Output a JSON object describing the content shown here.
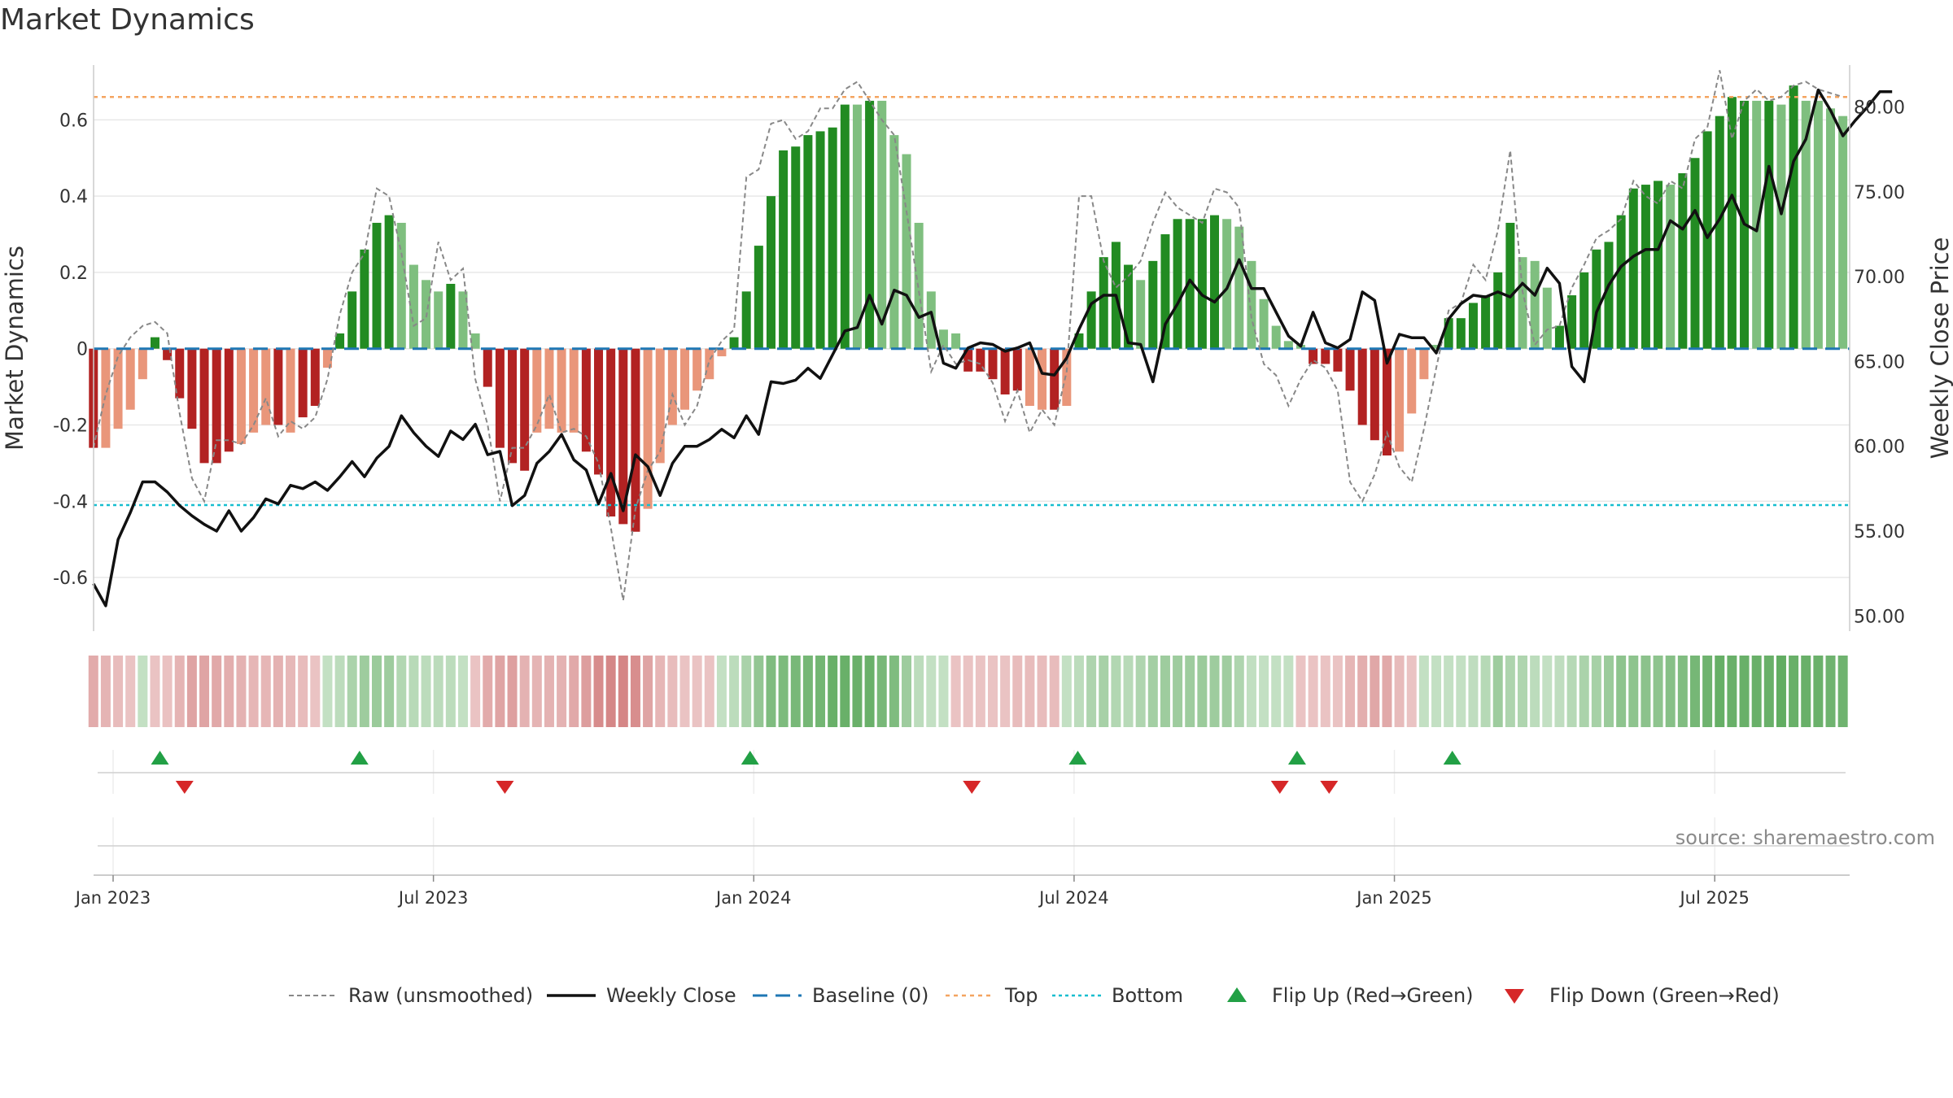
{
  "title": "Market Dynamics",
  "source_text": "source: sharemaestro.com",
  "colors": {
    "strong_green": "#228b22",
    "light_green": "#7fbf7f",
    "strong_red": "#b22222",
    "light_red": "#e9967a",
    "raw_line": "#888888",
    "close_line": "#111111",
    "baseline": "#1f77b4",
    "top": "#f4a460",
    "bottom": "#17becf",
    "flip_up": "#22a045",
    "flip_down": "#d62728",
    "grid": "#e8e8e8"
  },
  "chart_data": {
    "type": "bar",
    "ylabel": "Market Dynamics",
    "y2label": "Weekly Close Price",
    "ylim": [
      -0.75,
      0.74
    ],
    "y2lim": [
      48.6,
      81.8
    ],
    "yticks": [
      "-0.6",
      "-0.4",
      "-0.2",
      "0",
      "0.2",
      "0.4",
      "0.6"
    ],
    "yticks_values": [
      -0.6,
      -0.4,
      -0.2,
      0,
      0.2,
      0.4,
      0.6
    ],
    "y2ticks": [
      "50.00",
      "55.00",
      "60.00",
      "65.00",
      "70.00",
      "75.00",
      "80.00"
    ],
    "y2ticks_values": [
      50,
      55,
      60,
      65,
      70,
      75,
      80
    ],
    "xticks": [
      "Jan 2023",
      "Jul 2023",
      "Jan 2024",
      "Jul 2024",
      "Jan 2025",
      "Jul 2025"
    ],
    "xticks_weeks": [
      0,
      26,
      52,
      78,
      104,
      130
    ],
    "x_start": "2023-01-01",
    "x_end": "2025-10-08",
    "week_start_index": -1.6,
    "grid": true,
    "top_level": 0.66,
    "bottom_level": -0.41,
    "baseline_level": 0,
    "bars": [
      -0.26,
      -0.26,
      -0.21,
      -0.16,
      -0.08,
      0.03,
      -0.03,
      -0.13,
      -0.21,
      -0.3,
      -0.3,
      -0.27,
      -0.25,
      -0.22,
      -0.2,
      -0.2,
      -0.22,
      -0.18,
      -0.15,
      -0.05,
      0.04,
      0.15,
      0.26,
      0.33,
      0.35,
      0.33,
      0.22,
      0.18,
      0.15,
      0.17,
      0.15,
      0.04,
      -0.1,
      -0.26,
      -0.3,
      -0.32,
      -0.22,
      -0.21,
      -0.22,
      -0.22,
      -0.27,
      -0.33,
      -0.44,
      -0.46,
      -0.48,
      -0.42,
      -0.3,
      -0.2,
      -0.16,
      -0.11,
      -0.08,
      -0.02,
      0.03,
      0.15,
      0.27,
      0.4,
      0.52,
      0.53,
      0.56,
      0.57,
      0.58,
      0.64,
      0.64,
      0.65,
      0.65,
      0.56,
      0.51,
      0.33,
      0.15,
      0.05,
      0.04,
      -0.06,
      -0.06,
      -0.08,
      -0.12,
      -0.11,
      -0.15,
      -0.16,
      -0.16,
      -0.15,
      0.04,
      0.15,
      0.24,
      0.28,
      0.22,
      0.18,
      0.23,
      0.3,
      0.34,
      0.34,
      0.34,
      0.35,
      0.34,
      0.32,
      0.23,
      0.13,
      0.06,
      0.02,
      0.01,
      -0.04,
      -0.04,
      -0.06,
      -0.11,
      -0.2,
      -0.24,
      -0.28,
      -0.27,
      -0.17,
      -0.08,
      0.01,
      0.08,
      0.08,
      0.12,
      0.14,
      0.2,
      0.33,
      0.24,
      0.23,
      0.16,
      0.06,
      0.14,
      0.2,
      0.26,
      0.28,
      0.35,
      0.42,
      0.43,
      0.44,
      0.43,
      0.46,
      0.5,
      0.57,
      0.61,
      0.66,
      0.65,
      0.65,
      0.65,
      0.64,
      0.69,
      0.65,
      0.65,
      0.63,
      0.61
    ],
    "bar_shades": [
      "strong",
      "light",
      "light",
      "light",
      "light",
      "strong",
      "strong",
      "strong",
      "strong",
      "strong",
      "strong",
      "strong",
      "light",
      "light",
      "light",
      "strong",
      "light",
      "strong",
      "strong",
      "light",
      "strong",
      "strong",
      "strong",
      "strong",
      "strong",
      "light",
      "light",
      "light",
      "light",
      "strong",
      "light",
      "light",
      "strong",
      "strong",
      "strong",
      "strong",
      "light",
      "light",
      "light",
      "light",
      "strong",
      "strong",
      "strong",
      "strong",
      "strong",
      "light",
      "light",
      "light",
      "light",
      "light",
      "light",
      "light",
      "strong",
      "strong",
      "strong",
      "strong",
      "strong",
      "strong",
      "strong",
      "strong",
      "strong",
      "strong",
      "light",
      "strong",
      "light",
      "light",
      "light",
      "light",
      "light",
      "light",
      "light",
      "strong",
      "strong",
      "strong",
      "strong",
      "strong",
      "light",
      "light",
      "strong",
      "light",
      "strong",
      "strong",
      "strong",
      "strong",
      "strong",
      "light",
      "strong",
      "strong",
      "strong",
      "strong",
      "strong",
      "strong",
      "light",
      "light",
      "light",
      "light",
      "light",
      "light",
      "light",
      "strong",
      "strong",
      "strong",
      "strong",
      "strong",
      "strong",
      "strong",
      "light",
      "light",
      "light",
      "light",
      "strong",
      "strong",
      "strong",
      "strong",
      "strong",
      "strong",
      "light",
      "light",
      "light",
      "strong",
      "strong",
      "strong",
      "strong",
      "strong",
      "strong",
      "strong",
      "strong",
      "strong",
      "light",
      "strong",
      "strong",
      "strong",
      "strong",
      "strong",
      "strong",
      "light",
      "strong",
      "light",
      "strong",
      "light",
      "light",
      "light",
      "light"
    ],
    "raw": [
      -0.26,
      -0.12,
      -0.02,
      0.03,
      0.06,
      0.07,
      0.04,
      -0.17,
      -0.34,
      -0.4,
      -0.24,
      -0.24,
      -0.25,
      -0.2,
      -0.13,
      -0.23,
      -0.19,
      -0.21,
      -0.18,
      -0.08,
      0.09,
      0.2,
      0.25,
      0.42,
      0.4,
      0.25,
      0.06,
      0.08,
      0.28,
      0.18,
      0.21,
      -0.08,
      -0.2,
      -0.4,
      -0.26,
      -0.26,
      -0.2,
      -0.12,
      -0.22,
      -0.21,
      -0.23,
      -0.3,
      -0.47,
      -0.66,
      -0.42,
      -0.32,
      -0.27,
      -0.12,
      -0.2,
      -0.15,
      -0.03,
      0.02,
      0.05,
      0.45,
      0.47,
      0.59,
      0.6,
      0.55,
      0.57,
      0.63,
      0.63,
      0.68,
      0.7,
      0.65,
      0.6,
      0.56,
      0.36,
      0.15,
      -0.06,
      0.01,
      -0.04,
      -0.03,
      -0.04,
      -0.09,
      -0.19,
      -0.11,
      -0.22,
      -0.16,
      -0.2,
      -0.06,
      0.4,
      0.4,
      0.23,
      0.16,
      0.19,
      0.23,
      0.33,
      0.41,
      0.37,
      0.35,
      0.33,
      0.42,
      0.41,
      0.37,
      0.08,
      -0.04,
      -0.07,
      -0.15,
      -0.08,
      -0.03,
      -0.05,
      -0.11,
      -0.35,
      -0.4,
      -0.33,
      -0.22,
      -0.31,
      -0.35,
      -0.21,
      -0.05,
      0.1,
      0.12,
      0.22,
      0.18,
      0.31,
      0.52,
      0.15,
      0.01,
      0.05,
      0.06,
      0.16,
      0.22,
      0.29,
      0.31,
      0.34,
      0.44,
      0.4,
      0.38,
      0.44,
      0.42,
      0.55,
      0.58,
      0.73,
      0.55,
      0.65,
      0.68,
      0.65,
      0.66,
      0.69,
      0.7,
      0.68,
      0.67,
      0.66
    ],
    "close": [
      51.9,
      50.6,
      54.5,
      56.1,
      57.9,
      57.9,
      57.3,
      56.5,
      55.9,
      55.4,
      55.0,
      56.2,
      55.0,
      55.8,
      56.9,
      56.6,
      57.7,
      57.5,
      57.9,
      57.4,
      58.2,
      59.1,
      58.2,
      59.3,
      60.0,
      61.8,
      60.8,
      60.0,
      59.4,
      60.9,
      60.4,
      61.3,
      59.5,
      59.7,
      56.5,
      57.1,
      59.0,
      59.7,
      60.7,
      59.2,
      58.6,
      56.6,
      58.4,
      56.2,
      59.5,
      58.8,
      57.1,
      59.0,
      60.0,
      60.0,
      60.4,
      61.0,
      60.5,
      61.8,
      60.7,
      63.8,
      63.7,
      63.9,
      64.6,
      64.0,
      65.4,
      66.8,
      67.0,
      68.9,
      67.2,
      69.2,
      68.9,
      67.6,
      67.9,
      64.9,
      64.6,
      65.8,
      66.1,
      66.0,
      65.6,
      65.8,
      66.1,
      64.3,
      64.2,
      65.2,
      66.9,
      68.4,
      68.9,
      68.9,
      66.1,
      66.0,
      63.8,
      67.2,
      68.4,
      69.8,
      68.9,
      68.5,
      69.3,
      71.0,
      69.3,
      69.3,
      67.9,
      66.5,
      65.9,
      67.9,
      66.1,
      65.8,
      66.3,
      69.1,
      68.6,
      64.9,
      66.6,
      66.4,
      66.4,
      65.5,
      67.5,
      68.4,
      68.9,
      68.8,
      69.1,
      68.8,
      69.6,
      68.9,
      70.5,
      69.6,
      64.7,
      63.8,
      67.9,
      69.5,
      70.6,
      71.2,
      71.6,
      71.6,
      73.3,
      72.8,
      73.9,
      72.3,
      73.4,
      74.8,
      73.1,
      72.7,
      76.5,
      73.7,
      76.8,
      78.1,
      81.0,
      79.8,
      78.3,
      79.2,
      80.0,
      80.9,
      80.9
    ],
    "heat": [
      -0.26,
      -0.21,
      -0.16,
      -0.08,
      0.03,
      -0.03,
      -0.13,
      -0.21,
      -0.3,
      -0.3,
      -0.27,
      -0.25,
      -0.22,
      -0.2,
      -0.2,
      -0.22,
      -0.18,
      -0.15,
      -0.05,
      0.04,
      0.15,
      0.26,
      0.33,
      0.35,
      0.33,
      0.22,
      0.18,
      0.15,
      0.17,
      0.15,
      0.04,
      -0.1,
      -0.26,
      -0.3,
      -0.32,
      -0.22,
      -0.21,
      -0.22,
      -0.22,
      -0.27,
      -0.33,
      -0.44,
      -0.46,
      -0.48,
      -0.42,
      -0.3,
      -0.2,
      -0.16,
      -0.11,
      -0.08,
      -0.02,
      0.03,
      0.15,
      0.27,
      0.4,
      0.52,
      0.53,
      0.56,
      0.57,
      0.58,
      0.64,
      0.64,
      0.65,
      0.65,
      0.56,
      0.51,
      0.33,
      0.15,
      0.05,
      0.04,
      -0.06,
      -0.06,
      -0.08,
      -0.12,
      -0.11,
      -0.15,
      -0.16,
      -0.16,
      -0.15,
      0.04,
      0.15,
      0.24,
      0.28,
      0.22,
      0.18,
      0.23,
      0.3,
      0.34,
      0.34,
      0.34,
      0.35,
      0.34,
      0.32,
      0.23,
      0.13,
      0.06,
      0.02,
      0.01,
      -0.04,
      -0.04,
      -0.06,
      -0.11,
      -0.2,
      -0.24,
      -0.28,
      -0.27,
      -0.17,
      -0.08,
      0.01,
      0.08,
      0.08,
      0.12,
      0.14,
      0.2,
      0.33,
      0.24,
      0.23,
      0.16,
      0.06,
      0.14,
      0.2,
      0.26,
      0.28,
      0.35,
      0.42,
      0.43,
      0.44,
      0.43,
      0.46,
      0.5,
      0.57,
      0.61,
      0.66,
      0.65,
      0.65,
      0.65,
      0.64,
      0.69,
      0.65,
      0.65,
      0.63,
      0.61,
      0.6
    ],
    "flips_up_weeks": [
      3.8,
      20.0,
      51.7,
      78.3,
      96.1,
      108.7
    ],
    "flips_down_weeks": [
      5.8,
      31.8,
      69.7,
      94.7,
      98.7
    ]
  },
  "legend": [
    {
      "key": "raw",
      "label": "Raw (unsmoothed)"
    },
    {
      "key": "close",
      "label": "Weekly Close"
    },
    {
      "key": "baseline",
      "label": "Baseline (0)"
    },
    {
      "key": "top",
      "label": "Top"
    },
    {
      "key": "bottom",
      "label": "Bottom"
    },
    {
      "key": "flip_up",
      "label": "Flip Up (Red→Green)"
    },
    {
      "key": "flip_down",
      "label": "Flip Down (Green→Red)"
    }
  ]
}
